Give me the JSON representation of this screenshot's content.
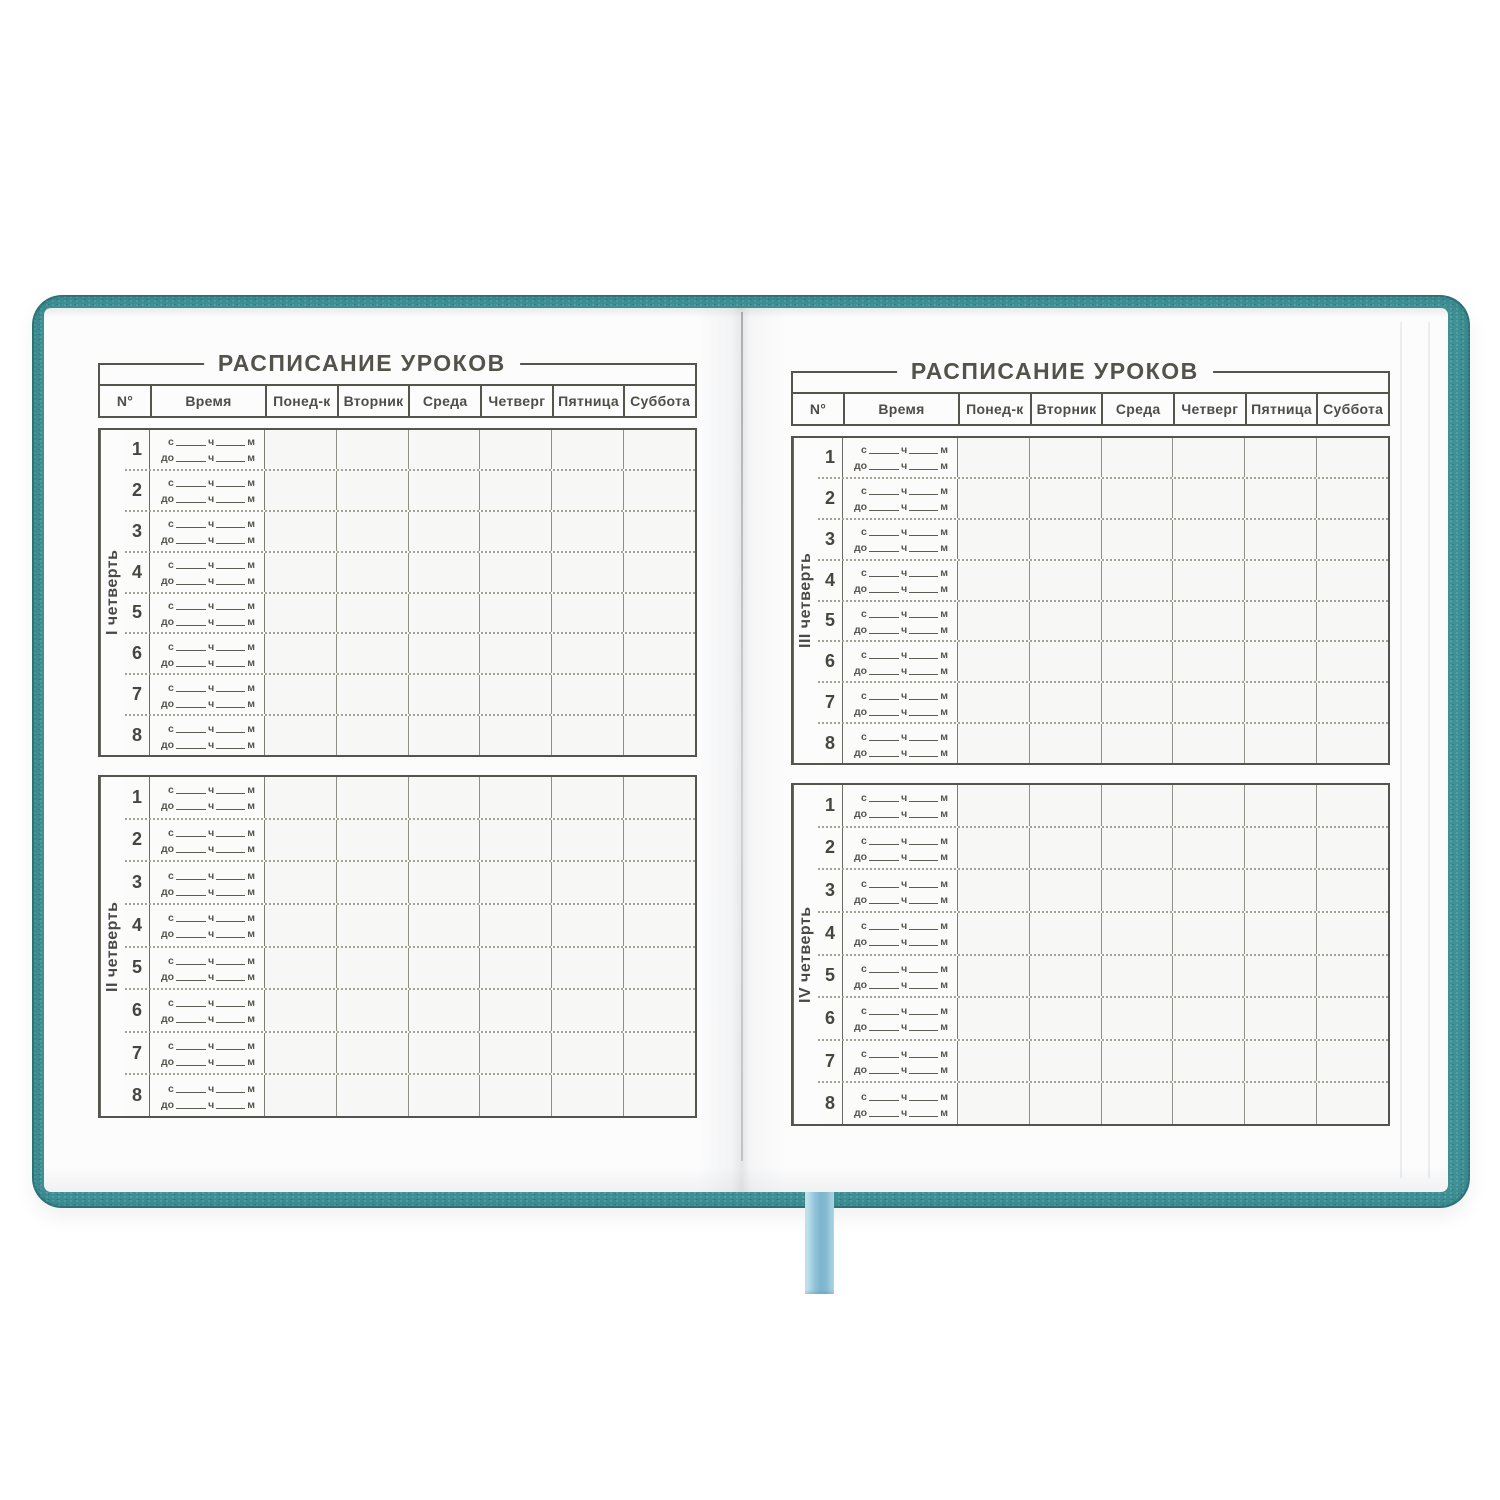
{
  "book": {
    "cover_color": "#3e9195",
    "ribbon_color": "#8fc3d8"
  },
  "schedule": {
    "title": "РАСПИСАНИЕ УРОКОВ",
    "columns": [
      "N°",
      "Время",
      "Понед-к",
      "Вторник",
      "Среда",
      "Четверг",
      "Пятница",
      "Суббота"
    ],
    "lesson_numbers": [
      "1",
      "2",
      "3",
      "4",
      "5",
      "6",
      "7",
      "8"
    ],
    "time_line_from": {
      "prefix": "с",
      "hour": "ч",
      "minute": "м"
    },
    "time_line_to": {
      "prefix": "до",
      "hour": "ч",
      "minute": "м"
    },
    "pages": [
      {
        "side": "left",
        "quarters": [
          "I четверть",
          "II четверть"
        ]
      },
      {
        "side": "right",
        "quarters": [
          "III четверть",
          "IV четверть"
        ]
      }
    ]
  }
}
